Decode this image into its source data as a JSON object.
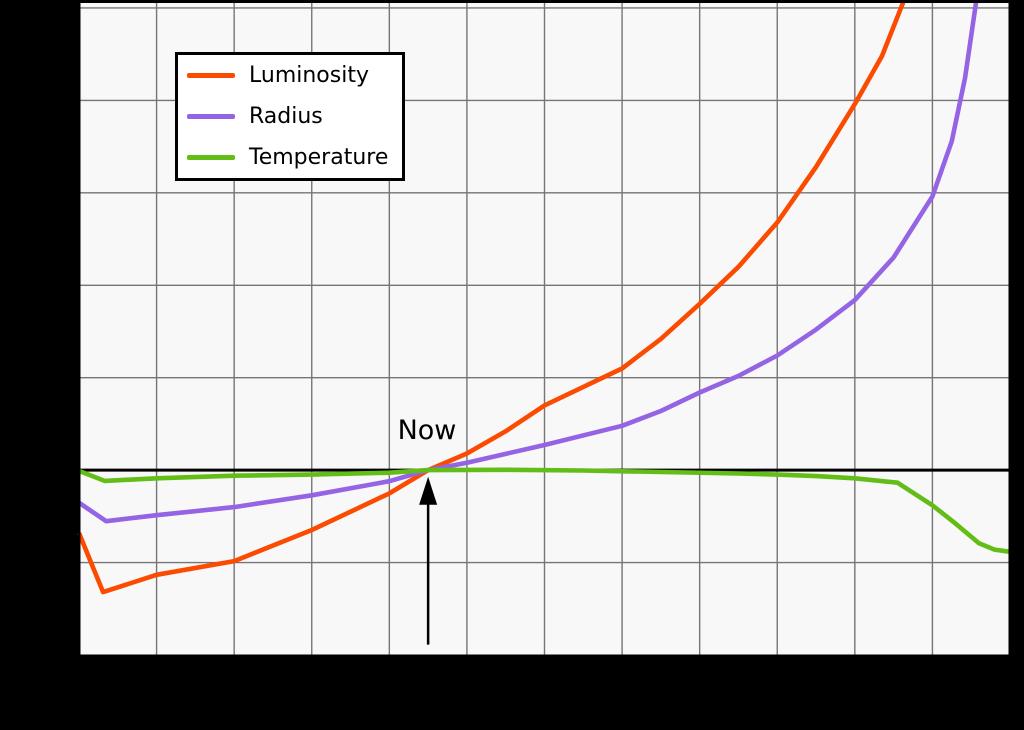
{
  "figure": {
    "background_color": "#000000",
    "plot_background_color": "#f8f8f8",
    "grid_color": "#757575",
    "axis_color": "#000000"
  },
  "chart_data": {
    "type": "line",
    "title": "",
    "x_axis": {
      "min": 0,
      "max": 12,
      "gridline_step": 1
    },
    "y_axis": {
      "min": 0.5,
      "max": 2.2675,
      "gridline_step": 0.25
    },
    "grid": true,
    "legend_position": "upper-left",
    "reference_line": {
      "y": 1.0
    },
    "annotation": {
      "label": "Now",
      "x": 4.5,
      "arrow_tip_y": 0.982,
      "arrow_base_y": 0.528
    },
    "series": [
      {
        "name": "Luminosity",
        "color": "#fb4b00",
        "x": [
          0,
          0.31,
          1,
          2,
          3,
          4,
          4.5,
          5,
          5.5,
          6,
          6.5,
          7,
          7.5,
          8,
          8.5,
          9,
          9.5,
          10,
          10.35,
          10.67
        ],
        "y": [
          0.83,
          0.67,
          0.717,
          0.754,
          0.838,
          0.937,
          1.0,
          1.045,
          1.105,
          1.175,
          1.225,
          1.275,
          1.355,
          1.45,
          1.55,
          1.67,
          1.82,
          1.99,
          2.12,
          2.29
        ]
      },
      {
        "name": "Radius",
        "color": "#9464e4",
        "x": [
          0,
          0.35,
          1,
          2,
          3,
          4,
          4.5,
          5,
          6,
          7,
          7.5,
          8,
          8.5,
          9,
          9.5,
          10,
          10.5,
          11,
          11.25,
          11.42,
          11.58
        ],
        "y": [
          0.912,
          0.862,
          0.878,
          0.9,
          0.932,
          0.97,
          1.0,
          1.02,
          1.068,
          1.12,
          1.16,
          1.21,
          1.255,
          1.31,
          1.38,
          1.46,
          1.575,
          1.74,
          1.89,
          2.06,
          2.29
        ]
      },
      {
        "name": "Temperature",
        "color": "#63bd17",
        "x": [
          0,
          0.33,
          1,
          2,
          3,
          4,
          4.5,
          5.5,
          6.5,
          7.5,
          8.5,
          9,
          9.5,
          10,
          10.55,
          11,
          11.3,
          11.6,
          11.8,
          12
        ],
        "y": [
          0.998,
          0.971,
          0.978,
          0.985,
          0.988,
          0.993,
          1.0,
          1.001,
          0.999,
          0.995,
          0.991,
          0.988,
          0.984,
          0.978,
          0.966,
          0.905,
          0.855,
          0.802,
          0.785,
          0.779
        ]
      }
    ]
  }
}
